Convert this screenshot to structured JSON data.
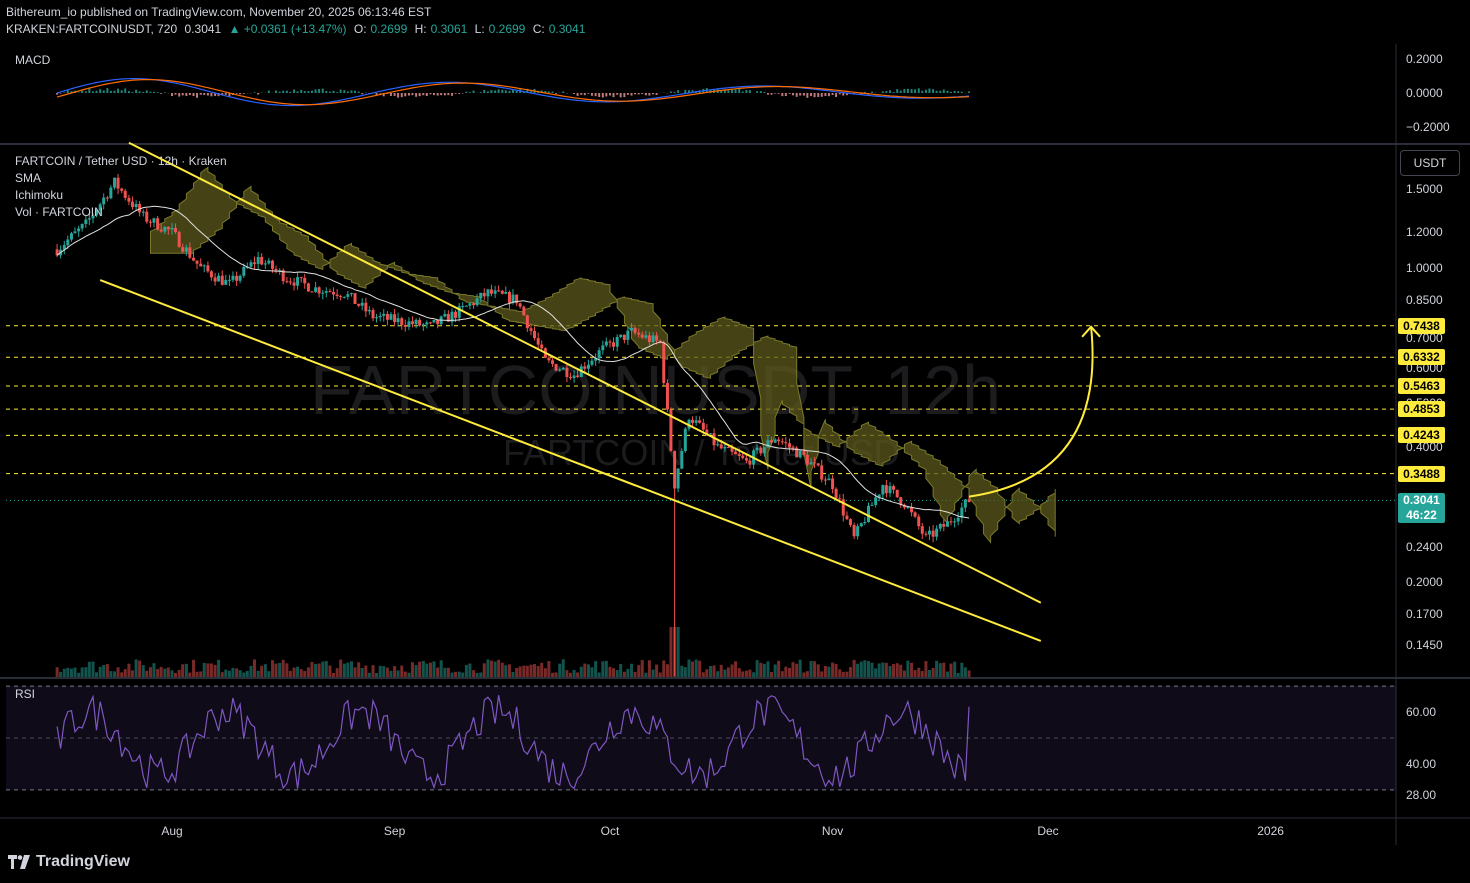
{
  "header": {
    "line1": "Bithereum_io published on TradingView.com, November 20, 2025 06:13:46 EST",
    "symbol": "KRAKEN:FARTCOINUSDT, 720",
    "last": "0.3041",
    "change": "▲ +0.0361 (+13.47%)",
    "o_label": "O:",
    "o": "0.2699",
    "h_label": "H:",
    "h": "0.3061",
    "l_label": "L:",
    "l": "0.2699",
    "c_label": "C:",
    "c": "0.3041"
  },
  "macd_label": "MACD",
  "rsi_label": "RSI",
  "legend": {
    "title": "FARTCOIN / Tether USD · 12h · Kraken",
    "sma": "SMA",
    "ichimoku": "Ichimoku",
    "vol": "Vol · FARTCOIN"
  },
  "watermark": {
    "main": "FARTCOINUSDT, 12h",
    "sub": "FARTCOIN / Tether USD"
  },
  "unit": "USDT",
  "price_tag": {
    "price": "0.3041",
    "countdown": "46:22"
  },
  "footer": {
    "brand": "TradingView"
  },
  "colors": {
    "bg": "#000000",
    "up": "#26a69a",
    "down": "#ef5350",
    "trendline": "#ffeb3b",
    "rsi": "#7e57c2",
    "cloud": "#5c5a1c"
  },
  "chart_data": [
    {
      "type": "bar",
      "name": "MACD",
      "ylim": [
        -0.2,
        0.2
      ],
      "y_ticks": [
        "0.2000",
        "0.0000",
        "−0.2000"
      ],
      "y_tick_values": [
        0.2,
        0.0,
        -0.2
      ]
    },
    {
      "type": "line",
      "name": "FARTCOIN / Tether USD · 12h · Kraken",
      "scale": "log",
      "y_ticks": [
        "1.5000",
        "1.2000",
        "1.0000",
        "0.8500",
        "0.7000",
        "0.6000",
        "0.5000",
        "0.4000",
        "0.3000",
        "0.2400",
        "0.2000",
        "0.1700",
        "0.1450"
      ],
      "y_tick_values": [
        1.5,
        1.2,
        1.0,
        0.85,
        0.7,
        0.6,
        0.5,
        0.4,
        0.3,
        0.24,
        0.2,
        0.17,
        0.145
      ],
      "x_ticks": [
        "Aug",
        "Sep",
        "Oct",
        "Nov",
        "Dec",
        "2026"
      ],
      "x_tick_values": [
        "2025-08-01",
        "2025-09-01",
        "2025-10-01",
        "2025-11-01",
        "2025-12-01",
        "2026-01-01"
      ],
      "levels": [
        0.7438,
        0.6332,
        0.5463,
        0.4853,
        0.4243,
        0.3488
      ],
      "level_labels": [
        "0.7438",
        "0.6332",
        "0.5463",
        "0.4853",
        "0.4243",
        "0.3488"
      ],
      "last_price": 0.3041,
      "price": [
        {
          "date": "2025-07-16",
          "close": 1.1
        },
        {
          "date": "2025-07-20",
          "close": 1.25
        },
        {
          "date": "2025-07-24",
          "close": 1.55
        },
        {
          "date": "2025-07-28",
          "close": 1.3
        },
        {
          "date": "2025-08-01",
          "close": 1.2
        },
        {
          "date": "2025-08-05",
          "close": 1.0
        },
        {
          "date": "2025-08-09",
          "close": 0.92
        },
        {
          "date": "2025-08-13",
          "close": 1.05
        },
        {
          "date": "2025-08-17",
          "close": 0.95
        },
        {
          "date": "2025-08-21",
          "close": 0.9
        },
        {
          "date": "2025-08-25",
          "close": 0.88
        },
        {
          "date": "2025-08-29",
          "close": 0.78
        },
        {
          "date": "2025-09-02",
          "close": 0.76
        },
        {
          "date": "2025-09-06",
          "close": 0.74
        },
        {
          "date": "2025-09-10",
          "close": 0.8
        },
        {
          "date": "2025-09-14",
          "close": 0.88
        },
        {
          "date": "2025-09-18",
          "close": 0.85
        },
        {
          "date": "2025-09-22",
          "close": 0.62
        },
        {
          "date": "2025-09-26",
          "close": 0.58
        },
        {
          "date": "2025-09-30",
          "close": 0.66
        },
        {
          "date": "2025-10-04",
          "close": 0.72
        },
        {
          "date": "2025-10-08",
          "close": 0.68
        },
        {
          "date": "2025-10-10",
          "close": 0.33
        },
        {
          "date": "2025-10-12",
          "close": 0.47
        },
        {
          "date": "2025-10-16",
          "close": 0.4
        },
        {
          "date": "2025-10-20",
          "close": 0.37
        },
        {
          "date": "2025-10-24",
          "close": 0.42
        },
        {
          "date": "2025-10-28",
          "close": 0.38
        },
        {
          "date": "2025-11-01",
          "close": 0.33
        },
        {
          "date": "2025-11-04",
          "close": 0.25
        },
        {
          "date": "2025-11-08",
          "close": 0.33
        },
        {
          "date": "2025-11-11",
          "close": 0.3
        },
        {
          "date": "2025-11-14",
          "close": 0.25
        },
        {
          "date": "2025-11-17",
          "close": 0.27
        },
        {
          "date": "2025-11-20",
          "close": 0.3041
        }
      ]
    },
    {
      "type": "line",
      "name": "RSI",
      "ylim": [
        20,
        70
      ],
      "y_ticks": [
        "60.00",
        "40.00",
        "28.00"
      ],
      "y_tick_values": [
        60,
        40,
        28
      ]
    }
  ]
}
